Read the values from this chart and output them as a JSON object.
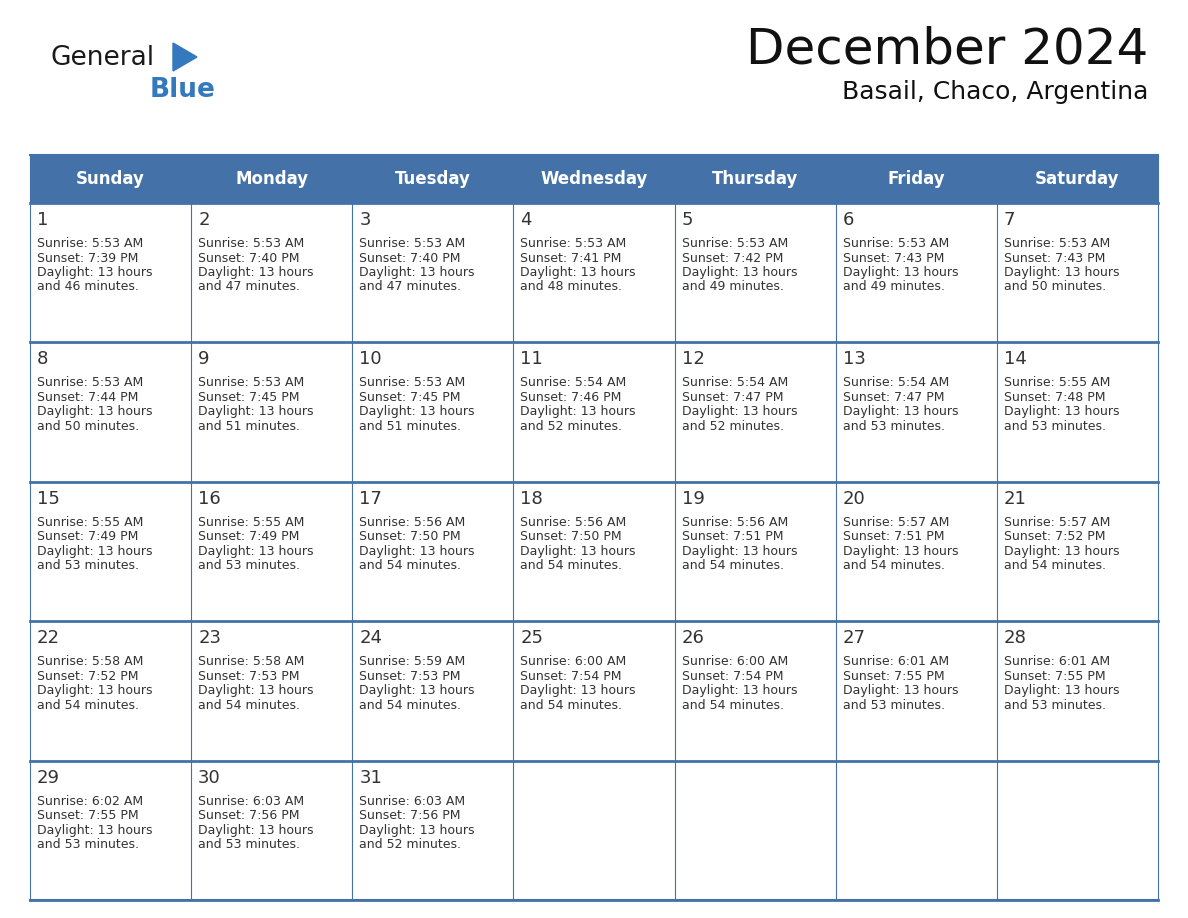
{
  "title": "December 2024",
  "subtitle": "Basail, Chaco, Argentina",
  "header_color": "#4472A8",
  "header_text_color": "#FFFFFF",
  "cell_bg_color": "#FFFFFF",
  "border_color": "#4472A8",
  "row_line_color": "#4472A8",
  "text_color": "#333333",
  "day_names": [
    "Sunday",
    "Monday",
    "Tuesday",
    "Wednesday",
    "Thursday",
    "Friday",
    "Saturday"
  ],
  "days": [
    {
      "day": 1,
      "col": 0,
      "row": 0,
      "sunrise": "5:53 AM",
      "sunset": "7:39 PM",
      "daylight": "13 hours and 46 minutes."
    },
    {
      "day": 2,
      "col": 1,
      "row": 0,
      "sunrise": "5:53 AM",
      "sunset": "7:40 PM",
      "daylight": "13 hours and 47 minutes."
    },
    {
      "day": 3,
      "col": 2,
      "row": 0,
      "sunrise": "5:53 AM",
      "sunset": "7:40 PM",
      "daylight": "13 hours and 47 minutes."
    },
    {
      "day": 4,
      "col": 3,
      "row": 0,
      "sunrise": "5:53 AM",
      "sunset": "7:41 PM",
      "daylight": "13 hours and 48 minutes."
    },
    {
      "day": 5,
      "col": 4,
      "row": 0,
      "sunrise": "5:53 AM",
      "sunset": "7:42 PM",
      "daylight": "13 hours and 49 minutes."
    },
    {
      "day": 6,
      "col": 5,
      "row": 0,
      "sunrise": "5:53 AM",
      "sunset": "7:43 PM",
      "daylight": "13 hours and 49 minutes."
    },
    {
      "day": 7,
      "col": 6,
      "row": 0,
      "sunrise": "5:53 AM",
      "sunset": "7:43 PM",
      "daylight": "13 hours and 50 minutes."
    },
    {
      "day": 8,
      "col": 0,
      "row": 1,
      "sunrise": "5:53 AM",
      "sunset": "7:44 PM",
      "daylight": "13 hours and 50 minutes."
    },
    {
      "day": 9,
      "col": 1,
      "row": 1,
      "sunrise": "5:53 AM",
      "sunset": "7:45 PM",
      "daylight": "13 hours and 51 minutes."
    },
    {
      "day": 10,
      "col": 2,
      "row": 1,
      "sunrise": "5:53 AM",
      "sunset": "7:45 PM",
      "daylight": "13 hours and 51 minutes."
    },
    {
      "day": 11,
      "col": 3,
      "row": 1,
      "sunrise": "5:54 AM",
      "sunset": "7:46 PM",
      "daylight": "13 hours and 52 minutes."
    },
    {
      "day": 12,
      "col": 4,
      "row": 1,
      "sunrise": "5:54 AM",
      "sunset": "7:47 PM",
      "daylight": "13 hours and 52 minutes."
    },
    {
      "day": 13,
      "col": 5,
      "row": 1,
      "sunrise": "5:54 AM",
      "sunset": "7:47 PM",
      "daylight": "13 hours and 53 minutes."
    },
    {
      "day": 14,
      "col": 6,
      "row": 1,
      "sunrise": "5:55 AM",
      "sunset": "7:48 PM",
      "daylight": "13 hours and 53 minutes."
    },
    {
      "day": 15,
      "col": 0,
      "row": 2,
      "sunrise": "5:55 AM",
      "sunset": "7:49 PM",
      "daylight": "13 hours and 53 minutes."
    },
    {
      "day": 16,
      "col": 1,
      "row": 2,
      "sunrise": "5:55 AM",
      "sunset": "7:49 PM",
      "daylight": "13 hours and 53 minutes."
    },
    {
      "day": 17,
      "col": 2,
      "row": 2,
      "sunrise": "5:56 AM",
      "sunset": "7:50 PM",
      "daylight": "13 hours and 54 minutes."
    },
    {
      "day": 18,
      "col": 3,
      "row": 2,
      "sunrise": "5:56 AM",
      "sunset": "7:50 PM",
      "daylight": "13 hours and 54 minutes."
    },
    {
      "day": 19,
      "col": 4,
      "row": 2,
      "sunrise": "5:56 AM",
      "sunset": "7:51 PM",
      "daylight": "13 hours and 54 minutes."
    },
    {
      "day": 20,
      "col": 5,
      "row": 2,
      "sunrise": "5:57 AM",
      "sunset": "7:51 PM",
      "daylight": "13 hours and 54 minutes."
    },
    {
      "day": 21,
      "col": 6,
      "row": 2,
      "sunrise": "5:57 AM",
      "sunset": "7:52 PM",
      "daylight": "13 hours and 54 minutes."
    },
    {
      "day": 22,
      "col": 0,
      "row": 3,
      "sunrise": "5:58 AM",
      "sunset": "7:52 PM",
      "daylight": "13 hours and 54 minutes."
    },
    {
      "day": 23,
      "col": 1,
      "row": 3,
      "sunrise": "5:58 AM",
      "sunset": "7:53 PM",
      "daylight": "13 hours and 54 minutes."
    },
    {
      "day": 24,
      "col": 2,
      "row": 3,
      "sunrise": "5:59 AM",
      "sunset": "7:53 PM",
      "daylight": "13 hours and 54 minutes."
    },
    {
      "day": 25,
      "col": 3,
      "row": 3,
      "sunrise": "6:00 AM",
      "sunset": "7:54 PM",
      "daylight": "13 hours and 54 minutes."
    },
    {
      "day": 26,
      "col": 4,
      "row": 3,
      "sunrise": "6:00 AM",
      "sunset": "7:54 PM",
      "daylight": "13 hours and 54 minutes."
    },
    {
      "day": 27,
      "col": 5,
      "row": 3,
      "sunrise": "6:01 AM",
      "sunset": "7:55 PM",
      "daylight": "13 hours and 53 minutes."
    },
    {
      "day": 28,
      "col": 6,
      "row": 3,
      "sunrise": "6:01 AM",
      "sunset": "7:55 PM",
      "daylight": "13 hours and 53 minutes."
    },
    {
      "day": 29,
      "col": 0,
      "row": 4,
      "sunrise": "6:02 AM",
      "sunset": "7:55 PM",
      "daylight": "13 hours and 53 minutes."
    },
    {
      "day": 30,
      "col": 1,
      "row": 4,
      "sunrise": "6:03 AM",
      "sunset": "7:56 PM",
      "daylight": "13 hours and 53 minutes."
    },
    {
      "day": 31,
      "col": 2,
      "row": 4,
      "sunrise": "6:03 AM",
      "sunset": "7:56 PM",
      "daylight": "13 hours and 52 minutes."
    }
  ],
  "logo_color_general": "#1a1a1a",
  "logo_color_blue": "#3479BE",
  "logo_triangle_color": "#3479BE",
  "title_fontsize": 36,
  "subtitle_fontsize": 18,
  "header_fontsize": 12,
  "day_num_fontsize": 13,
  "cell_text_fontsize": 9
}
